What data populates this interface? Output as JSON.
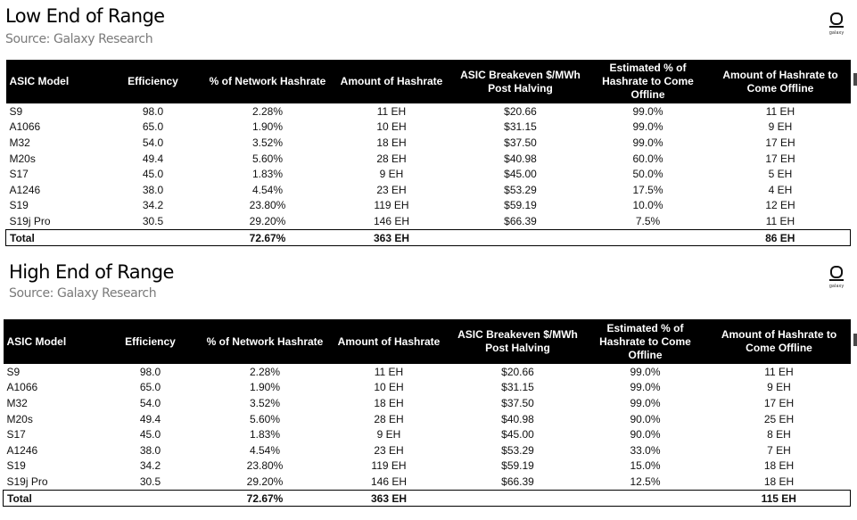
{
  "headers": [
    "ASIC Model",
    "Efficiency",
    "% of Network Hashrate",
    "Amount of Hashrate",
    "ASIC Breakeven $/MWh Post Halving",
    "Estimated % of Hashrate to Come Offline",
    "Amount of Hashrate to Come Offline"
  ],
  "logo_text": "galaxy",
  "low": {
    "title": "Low End of Range",
    "source": "Source: Galaxy Research",
    "rows": [
      [
        "S9",
        "98.0",
        "2.28%",
        "11 EH",
        "$20.66",
        "99.0%",
        "11 EH"
      ],
      [
        "A1066",
        "65.0",
        "1.90%",
        "10 EH",
        "$31.15",
        "99.0%",
        "9 EH"
      ],
      [
        "M32",
        "54.0",
        "3.52%",
        "18 EH",
        "$37.50",
        "99.0%",
        "17 EH"
      ],
      [
        "M20s",
        "49.4",
        "5.60%",
        "28 EH",
        "$40.98",
        "60.0%",
        "17 EH"
      ],
      [
        "S17",
        "45.0",
        "1.83%",
        "9 EH",
        "$45.00",
        "50.0%",
        "5 EH"
      ],
      [
        "A1246",
        "38.0",
        "4.54%",
        "23 EH",
        "$53.29",
        "17.5%",
        "4 EH"
      ],
      [
        "S19",
        "34.2",
        "23.80%",
        "119 EH",
        "$59.19",
        "10.0%",
        "12 EH"
      ],
      [
        "S19j Pro",
        "30.5",
        "29.20%",
        "146 EH",
        "$66.39",
        "7.5%",
        "11 EH"
      ]
    ],
    "total": [
      "Total",
      "",
      "72.67%",
      "363 EH",
      "",
      "",
      "86 EH"
    ]
  },
  "high": {
    "title": "High End of Range",
    "source": "Source: Galaxy Research",
    "rows": [
      [
        "S9",
        "98.0",
        "2.28%",
        "11 EH",
        "$20.66",
        "99.0%",
        "11 EH"
      ],
      [
        "A1066",
        "65.0",
        "1.90%",
        "10 EH",
        "$31.15",
        "99.0%",
        "9 EH"
      ],
      [
        "M32",
        "54.0",
        "3.52%",
        "18 EH",
        "$37.50",
        "99.0%",
        "17 EH"
      ],
      [
        "M20s",
        "49.4",
        "5.60%",
        "28 EH",
        "$40.98",
        "90.0%",
        "25 EH"
      ],
      [
        "S17",
        "45.0",
        "1.83%",
        "9 EH",
        "$45.00",
        "90.0%",
        "8 EH"
      ],
      [
        "A1246",
        "38.0",
        "4.54%",
        "23 EH",
        "$53.29",
        "33.0%",
        "7 EH"
      ],
      [
        "S19",
        "34.2",
        "23.80%",
        "119 EH",
        "$59.19",
        "15.0%",
        "18 EH"
      ],
      [
        "S19j Pro",
        "30.5",
        "29.20%",
        "146 EH",
        "$66.39",
        "12.5%",
        "18 EH"
      ]
    ],
    "total": [
      "Total",
      "",
      "72.67%",
      "363 EH",
      "",
      "",
      "115 EH"
    ]
  }
}
